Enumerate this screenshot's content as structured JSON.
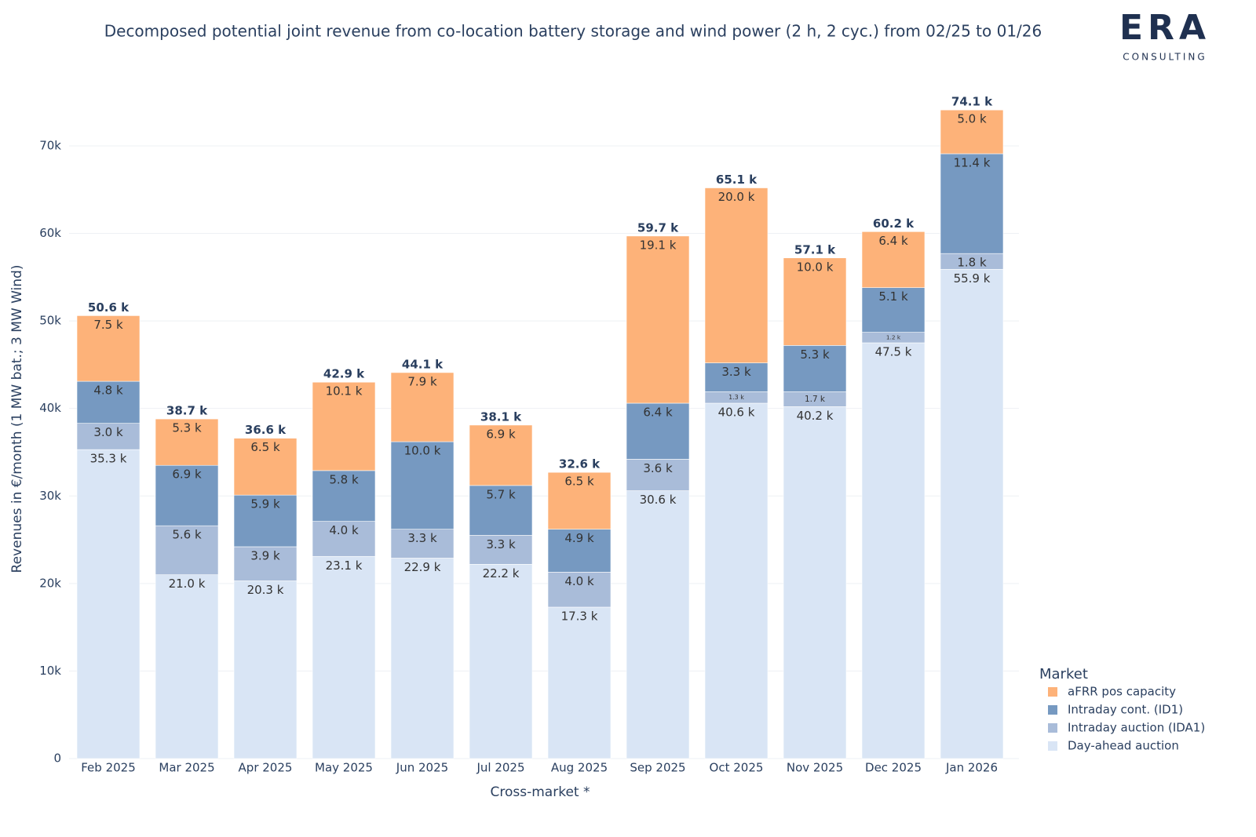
{
  "chart_data": {
    "type": "stacked-bar",
    "title": "Decomposed potential joint revenue from co-location battery storage and wind power (2 h, 2 cyc.) from 02/25 to 01/26",
    "x_label": "Cross-market *",
    "y_label": "Revenues in €/month (1 MW bat.; 3 MW Wind)",
    "legend_title": "Market",
    "legend_position": "bottom-right",
    "grid": true,
    "categories": [
      "Feb 2025",
      "Mar 2025",
      "Apr 2025",
      "May 2025",
      "Jun 2025",
      "Jul 2025",
      "Aug 2025",
      "Sep 2025",
      "Oct 2025",
      "Nov 2025",
      "Dec 2025",
      "Jan 2026"
    ],
    "series": [
      {
        "name": "Day-ahead auction",
        "color": "#d9e5f5",
        "values": [
          35300,
          21000,
          20300,
          23100,
          22900,
          22200,
          17300,
          30600,
          40600,
          40200,
          47500,
          55900
        ],
        "value_labels": [
          "35.3 k",
          "21.0 k",
          "20.3 k",
          "23.1 k",
          "22.9 k",
          "22.2 k",
          "17.3 k",
          "30.6 k",
          "40.6 k",
          "40.2 k",
          "47.5 k",
          "55.9 k"
        ]
      },
      {
        "name": "Intraday auction (IDA1)",
        "color": "#a9bcd9",
        "values": [
          3000,
          5600,
          3900,
          4000,
          3300,
          3300,
          4000,
          3600,
          1300,
          1700,
          1200,
          1800
        ],
        "value_labels": [
          "3.0 k",
          "5.6 k",
          "3.9 k",
          "4.0 k",
          "3.3 k",
          "3.3 k",
          "4.0 k",
          "3.6 k",
          "1.3 k",
          "1.7 k",
          "1.2 k",
          "1.8 k"
        ]
      },
      {
        "name": "Intraday cont. (ID1)",
        "color": "#7699c1",
        "values": [
          4800,
          6900,
          5900,
          5800,
          10000,
          5700,
          4900,
          6400,
          3300,
          5300,
          5100,
          11400
        ],
        "value_labels": [
          "4.8 k",
          "6.9 k",
          "5.9 k",
          "5.8 k",
          "10.0 k",
          "5.7 k",
          "4.9 k",
          "6.4 k",
          "3.3 k",
          "5.3 k",
          "5.1 k",
          "11.4 k"
        ]
      },
      {
        "name": "aFRR pos capacity",
        "color": "#fdb279",
        "values": [
          7500,
          5300,
          6500,
          10100,
          7900,
          6900,
          6500,
          19100,
          20000,
          10000,
          6400,
          5000
        ],
        "value_labels": [
          "7.5 k",
          "5.3 k",
          "6.5 k",
          "10.1 k",
          "7.9 k",
          "6.9 k",
          "6.5 k",
          "19.1 k",
          "20.0 k",
          "10.0 k",
          "6.4 k",
          "5.0 k"
        ]
      }
    ],
    "totals": [
      50600,
      38700,
      36600,
      42900,
      44100,
      38100,
      32600,
      59700,
      65100,
      57100,
      60200,
      74100
    ],
    "total_labels": [
      "50.6 k",
      "38.7 k",
      "36.6 k",
      "42.9 k",
      "44.1 k",
      "38.1 k",
      "32.6 k",
      "59.7 k",
      "65.1 k",
      "57.1 k",
      "60.2 k",
      "74.1 k"
    ],
    "ylim": [
      0,
      76000
    ],
    "yticks": [
      0,
      {
        "value": 10000,
        "label": "10k"
      },
      {
        "value": 20000,
        "label": "20k"
      },
      {
        "value": 30000,
        "label": "30k"
      },
      {
        "value": 40000,
        "label": "40k"
      },
      {
        "value": 50000,
        "label": "50k"
      },
      {
        "value": 60000,
        "label": "60k"
      },
      {
        "value": 70000,
        "label": "70k"
      }
    ]
  },
  "logo": {
    "name": "ERA",
    "tagline": "CONSULTING"
  }
}
